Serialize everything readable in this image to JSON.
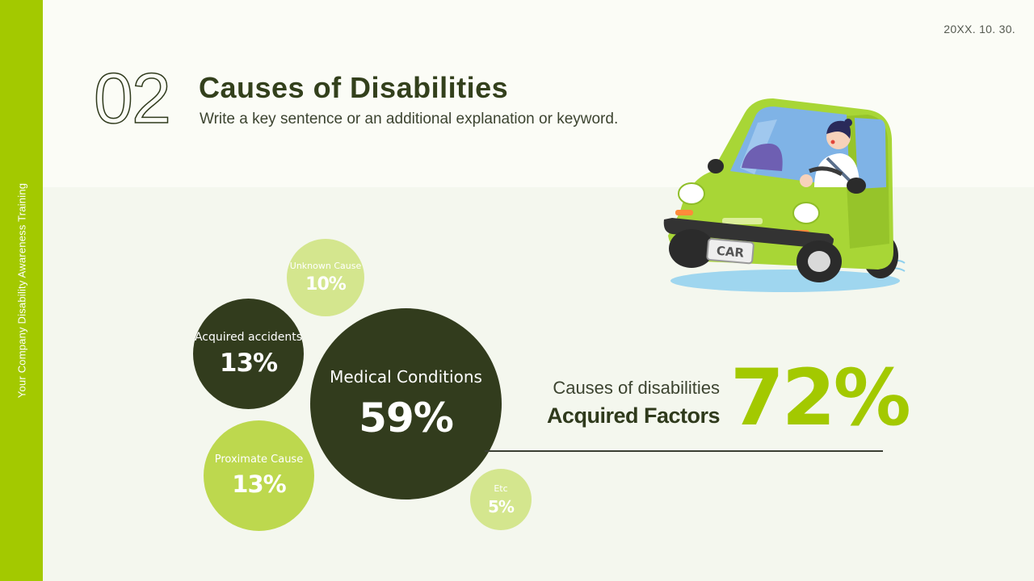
{
  "side_label": "Your Company Disability Awareness Training",
  "date": "20XX. 10. 30.",
  "section_number": "02",
  "title": "Causes of Disabilities",
  "subtitle": "Write a key sentence or an additional explanation or keyword.",
  "bubbles": {
    "unknown": {
      "label": "Unknown Cause",
      "value": "10%"
    },
    "acquired": {
      "label": "Acquired accidents",
      "value": "13%"
    },
    "medical": {
      "label": "Medical Conditions",
      "value": "59%"
    },
    "proximate": {
      "label": "Proximate Cause",
      "value": "13%"
    },
    "etc": {
      "label": "Etc",
      "value": "5%"
    }
  },
  "callout": {
    "line1": "Causes of disabilities",
    "line2": "Acquired Factors",
    "percent": "72%"
  },
  "illustration": {
    "plate_text": "CAR"
  },
  "colors": {
    "accent": "#a3c900",
    "dark": "#323c1d",
    "light": "#d4e68e",
    "mid": "#bdd84e"
  }
}
